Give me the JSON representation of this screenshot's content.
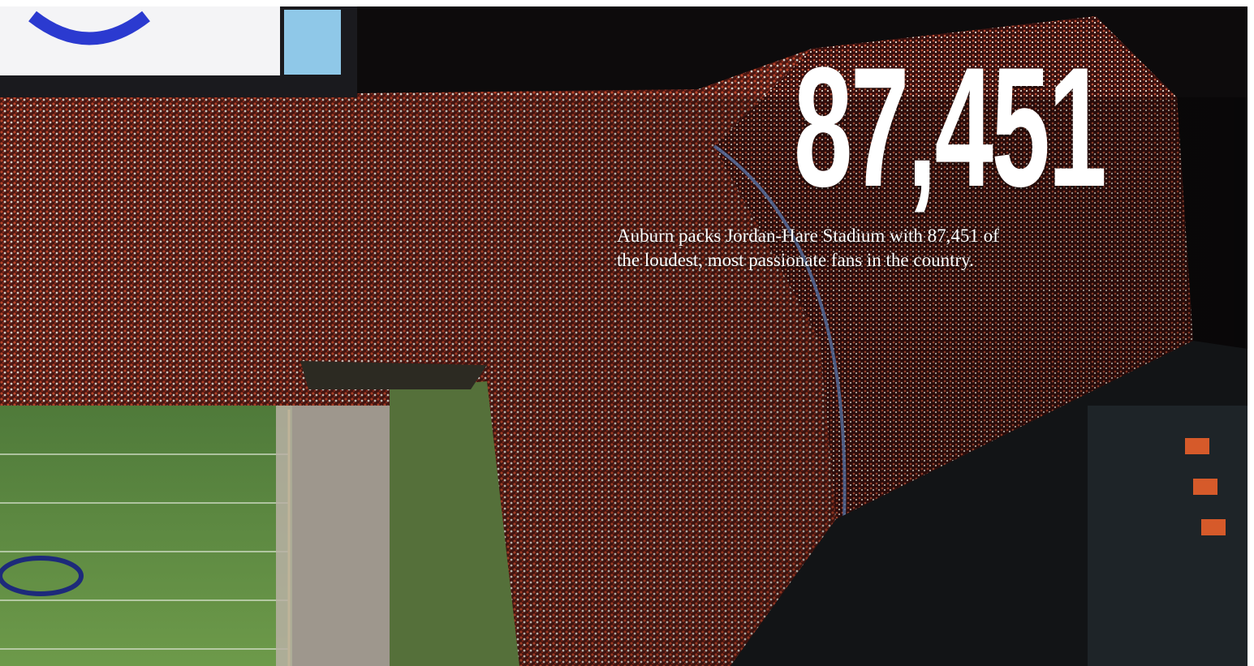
{
  "hero": {
    "stat": "87,451",
    "caption_lines": [
      "Auburn packs Jordan-Hare Stadium with 87,451 of",
      "the loudest, most passionate fans in the country."
    ]
  }
}
